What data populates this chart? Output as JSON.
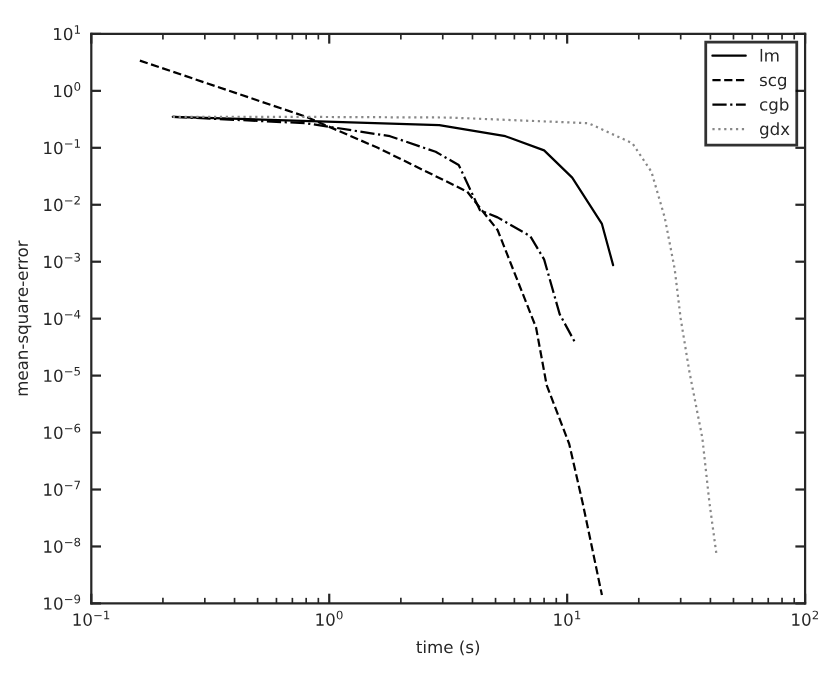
{
  "chart_data": {
    "type": "line",
    "xlabel": "time (s)",
    "ylabel": "mean-square-error",
    "log": "xy",
    "xlim": [
      0.1,
      100
    ],
    "ylim": [
      1e-09,
      10
    ],
    "xticks": [
      {
        "value": 0.1,
        "label": "10$^{−1}$"
      },
      {
        "value": 1,
        "label": "10$^{0}$"
      },
      {
        "value": 10,
        "label": "10$^{1}$"
      },
      {
        "value": 100,
        "label": "10$^{2}$"
      }
    ],
    "yticks": [
      {
        "value": 1e-09,
        "label": "10$^{−9}$"
      },
      {
        "value": 1e-08,
        "label": "10$^{−8}$"
      },
      {
        "value": 1e-07,
        "label": "10$^{−7}$"
      },
      {
        "value": 1e-06,
        "label": "10$^{−6}$"
      },
      {
        "value": 1e-05,
        "label": "10$^{−5}$"
      },
      {
        "value": 0.0001,
        "label": "10$^{−4}$"
      },
      {
        "value": 0.001,
        "label": "10$^{−3}$"
      },
      {
        "value": 0.01,
        "label": "10$^{−2}$"
      },
      {
        "value": 0.1,
        "label": "10$^{−1}$"
      },
      {
        "value": 1,
        "label": "10$^{0}$"
      },
      {
        "value": 10,
        "label": "10$^{1}$"
      }
    ],
    "grid": false,
    "legend": "top right",
    "marker": "none",
    "series": [
      {
        "name": "lm",
        "color": "#000000",
        "line_style": "solid",
        "x": [
          0.22,
          2.9,
          5.5,
          8,
          10.5,
          14,
          15.6
        ],
        "values": [
          0.35,
          0.25,
          0.16,
          0.09,
          0.03,
          0.0046,
          0.00087
        ]
      },
      {
        "name": "scg",
        "color": "#000000",
        "line_style": "dashed",
        "x": [
          0.16,
          0.8,
          1.6,
          3.8,
          5.1,
          7.4,
          8.2,
          10.2,
          11.6,
          14
        ],
        "values": [
          3.4,
          0.35,
          0.1,
          0.017,
          0.0036,
          7e-05,
          6.8e-06,
          6.3e-07,
          6e-08,
          1.4e-09
        ]
      },
      {
        "name": "cgb",
        "color": "#000000",
        "line_style": "dashdot",
        "x": [
          0.22,
          0.8,
          1.8,
          2.8,
          3.5,
          4.3,
          5.1,
          7,
          8,
          9.3,
          10.8
        ],
        "values": [
          0.35,
          0.27,
          0.16,
          0.085,
          0.05,
          0.008,
          0.006,
          0.0028,
          0.0011,
          0.00012,
          3.8e-05
        ]
      },
      {
        "name": "gdx",
        "color": "#888888",
        "line_style": "dotted",
        "x": [
          0.22,
          0.67,
          3.2,
          12.3,
          18.8,
          22.6,
          25.7,
          28.3,
          30,
          32.6,
          37,
          39.6,
          42.4
        ],
        "values": [
          0.35,
          0.35,
          0.34,
          0.27,
          0.12,
          0.038,
          0.006,
          0.00075,
          0.0001,
          1.2e-05,
          8e-07,
          6e-08,
          7.3e-09
        ]
      }
    ]
  }
}
